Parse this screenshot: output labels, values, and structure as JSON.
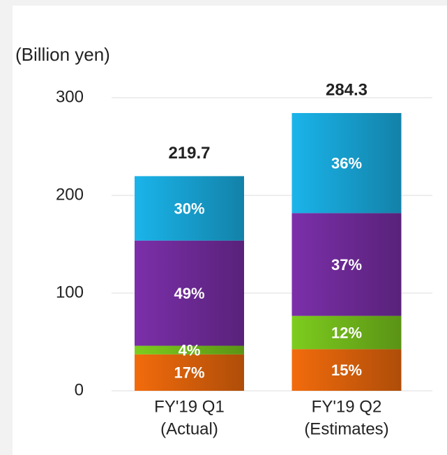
{
  "chart_data": {
    "type": "stacked_bar",
    "y_label": "(Billion yen)",
    "categories": [
      [
        "FY'19 Q1",
        "(Actual)"
      ],
      [
        "FY'19 Q2",
        "(Estimates)"
      ]
    ],
    "series": [
      {
        "color": "#f26b0c",
        "values": [
          37.3,
          42.6
        ],
        "value_labels": [
          "17%",
          "15%"
        ]
      },
      {
        "color": "#7dcc1e",
        "values": [
          8.8,
          34.1
        ],
        "value_labels": [
          "4%",
          "12%"
        ]
      },
      {
        "color": "#7b2fa9",
        "values": [
          107.7,
          105.2
        ],
        "value_labels": [
          "49%",
          "37%"
        ]
      },
      {
        "color": "#1ab4ea",
        "values": [
          65.9,
          102.4
        ],
        "value_labels": [
          "30%",
          "36%"
        ]
      }
    ],
    "totals": [
      219.7,
      284.3
    ],
    "ylim": [
      0,
      300
    ],
    "yticks": [
      0,
      100,
      200,
      300
    ],
    "grid": true
  }
}
